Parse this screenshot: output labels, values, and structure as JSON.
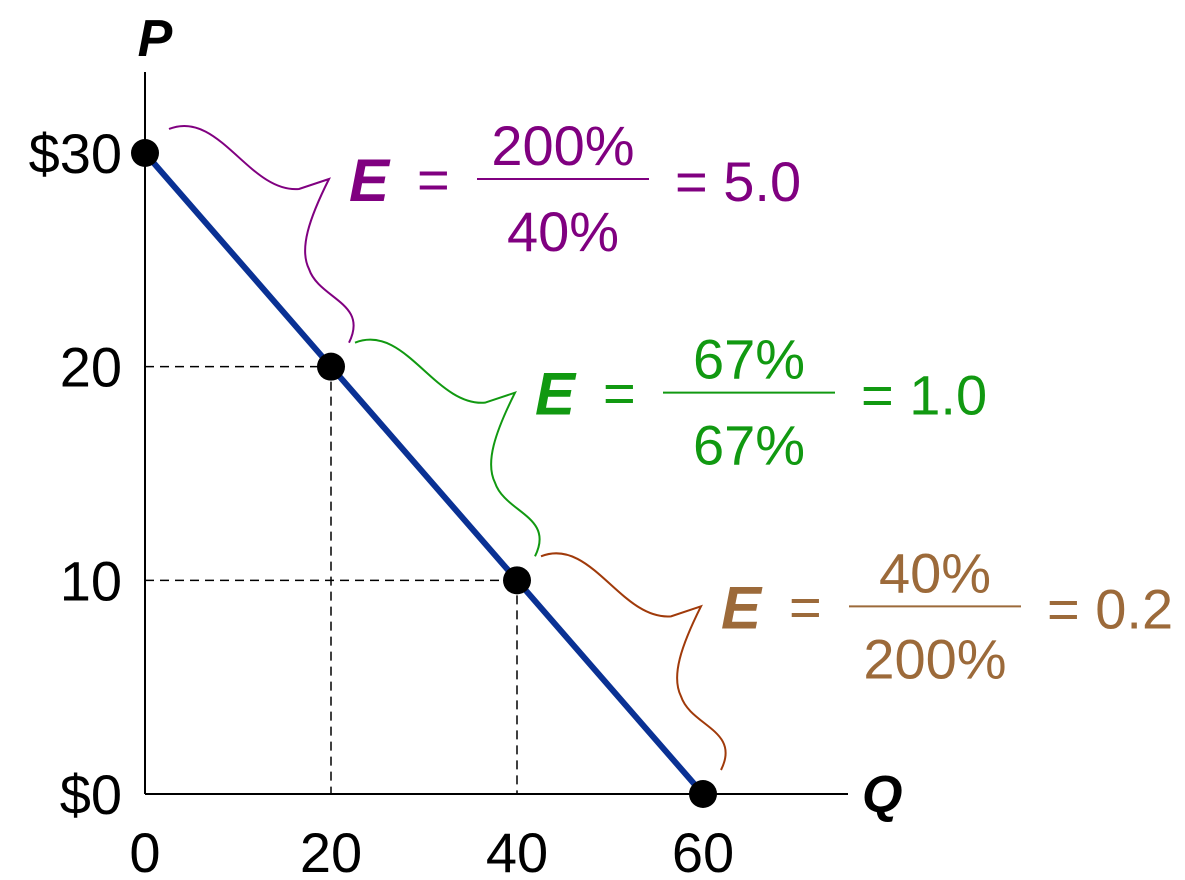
{
  "chart_data": {
    "type": "line",
    "title": "",
    "xlabel": "Q",
    "ylabel": "P",
    "xlim": [
      0,
      72
    ],
    "ylim": [
      0,
      32
    ],
    "grid": false,
    "x_ticks": [
      {
        "value": 0,
        "label": "0"
      },
      {
        "value": 20,
        "label": "20"
      },
      {
        "value": 40,
        "label": "40"
      },
      {
        "value": 60,
        "label": "60"
      }
    ],
    "y_ticks": [
      {
        "value": 30,
        "label": "$30"
      },
      {
        "value": 20,
        "label": "20"
      },
      {
        "value": 10,
        "label": "10"
      },
      {
        "value": 0,
        "label": "$0"
      }
    ],
    "series": [
      {
        "color": "#0a3194",
        "points": [
          {
            "x": 0,
            "y": 30
          },
          {
            "x": 20,
            "y": 20
          },
          {
            "x": 40,
            "y": 10
          },
          {
            "x": 60,
            "y": 0
          }
        ]
      }
    ],
    "reference_points": [
      {
        "x": 20,
        "y": 20
      },
      {
        "x": 40,
        "y": 10
      }
    ],
    "annotations": [
      {
        "from": {
          "x": 0,
          "y": 30
        },
        "to": {
          "x": 20,
          "y": 20
        },
        "e_label": "E",
        "equals": "=",
        "numerator": "200%",
        "denominator": "40%",
        "result": "= 5.0",
        "color": "#800080"
      },
      {
        "from": {
          "x": 20,
          "y": 20
        },
        "to": {
          "x": 40,
          "y": 10
        },
        "e_label": "E",
        "equals": "=",
        "numerator": "67%",
        "denominator": "67%",
        "result": "= 1.0",
        "color": "#119911"
      },
      {
        "from": {
          "x": 40,
          "y": 10
        },
        "to": {
          "x": 60,
          "y": 0
        },
        "e_label": "E",
        "equals": "=",
        "numerator": "40%",
        "denominator": "200%",
        "result": "= 0.2",
        "color": "#9c6a3a",
        "bracket_color": "#a03a0a"
      }
    ]
  }
}
